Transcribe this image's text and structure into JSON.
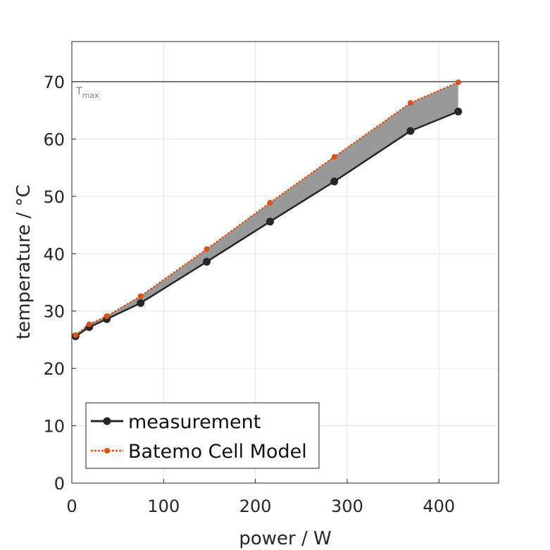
{
  "chart_data": {
    "type": "line",
    "xlabel": "power / W",
    "ylabel": "temperature / °C",
    "xlim": [
      0,
      465
    ],
    "ylim": [
      0,
      77
    ],
    "xticks": [
      0,
      100,
      200,
      300,
      400
    ],
    "yticks": [
      0,
      10,
      20,
      30,
      40,
      50,
      60,
      70
    ],
    "grid": true,
    "legend_position": "bottom-left",
    "reference_line": {
      "y": 70,
      "label": "T",
      "label_sub": "max"
    },
    "fill_between": {
      "series": [
        0,
        1
      ],
      "color": "#999999"
    },
    "series": [
      {
        "name": "measurement",
        "color": "#262626",
        "x": [
          4,
          19,
          38,
          75,
          147,
          216,
          286,
          369,
          421
        ],
        "y": [
          25.6,
          27.2,
          28.6,
          31.4,
          38.6,
          45.6,
          52.6,
          61.4,
          64.8
        ]
      },
      {
        "name": "Batemo Cell Model",
        "color": "#d95319",
        "x": [
          4,
          19,
          38,
          75,
          147,
          216,
          286,
          369,
          421
        ],
        "y": [
          25.8,
          27.7,
          29.1,
          32.6,
          40.8,
          48.9,
          56.9,
          66.3,
          69.9
        ]
      }
    ]
  }
}
